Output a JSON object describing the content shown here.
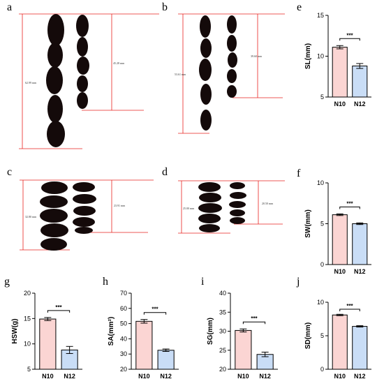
{
  "panel_letters": [
    "a",
    "b",
    "c",
    "d",
    "e",
    "f",
    "g",
    "h",
    "i",
    "j"
  ],
  "photos": {
    "a": {
      "left_length": "62.99 mm",
      "right_length": "45.28 mm"
    },
    "b": {
      "left_length": "53.61 mm",
      "right_length": "39.60 mm"
    },
    "c": {
      "left_length": "32.80 mm",
      "right_length": "23.91 mm"
    },
    "d": {
      "left_length": "25.00 mm",
      "right_length": "20.50 mm"
    }
  },
  "colors": {
    "N10": "#fbd5d3",
    "N12": "#c9ddf6",
    "photo_line": "#e8231f",
    "seed": "#140a0a"
  },
  "chart_data": [
    {
      "id": "e",
      "type": "bar",
      "categories": [
        "N10",
        "N12"
      ],
      "values": [
        11.1,
        8.8
      ],
      "errors": [
        0.2,
        0.3
      ],
      "ylabel": "SL(mm)",
      "ylim": [
        5,
        15
      ],
      "yticks": [
        5,
        10,
        15
      ],
      "significance": "***"
    },
    {
      "id": "f",
      "type": "bar",
      "categories": [
        "N10",
        "N12"
      ],
      "values": [
        6.1,
        5.0
      ],
      "errors": [
        0.1,
        0.1
      ],
      "ylabel": "SW(mm)",
      "ylim": [
        0,
        10
      ],
      "yticks": [
        0,
        5,
        10
      ],
      "significance": "***"
    },
    {
      "id": "g",
      "type": "bar",
      "categories": [
        "N10",
        "N12"
      ],
      "values": [
        14.9,
        8.8
      ],
      "errors": [
        0.3,
        0.7
      ],
      "ylabel": "HSW(g)",
      "ylim": [
        5,
        20
      ],
      "yticks": [
        5,
        10,
        15,
        20
      ],
      "significance": "***"
    },
    {
      "id": "h",
      "type": "bar",
      "categories": [
        "N10",
        "N12"
      ],
      "values": [
        51.5,
        32.5
      ],
      "errors": [
        1.2,
        0.8
      ],
      "ylabel": "SA(mm²)",
      "ylim": [
        20,
        70
      ],
      "yticks": [
        20,
        30,
        40,
        50,
        60,
        70
      ],
      "significance": "***"
    },
    {
      "id": "i",
      "type": "bar",
      "categories": [
        "N10",
        "N12"
      ],
      "values": [
        30.2,
        23.9
      ],
      "errors": [
        0.4,
        0.6
      ],
      "ylabel": "SG(mm)",
      "ylim": [
        20,
        40
      ],
      "yticks": [
        20,
        25,
        30,
        35,
        40
      ],
      "significance": "***"
    },
    {
      "id": "j",
      "type": "bar",
      "categories": [
        "N10",
        "N12"
      ],
      "values": [
        8.1,
        6.4
      ],
      "errors": [
        0.1,
        0.1
      ],
      "ylabel": "SD(mm)",
      "ylim": [
        0,
        10
      ],
      "yticks": [
        0,
        5,
        10
      ],
      "significance": "***"
    }
  ]
}
